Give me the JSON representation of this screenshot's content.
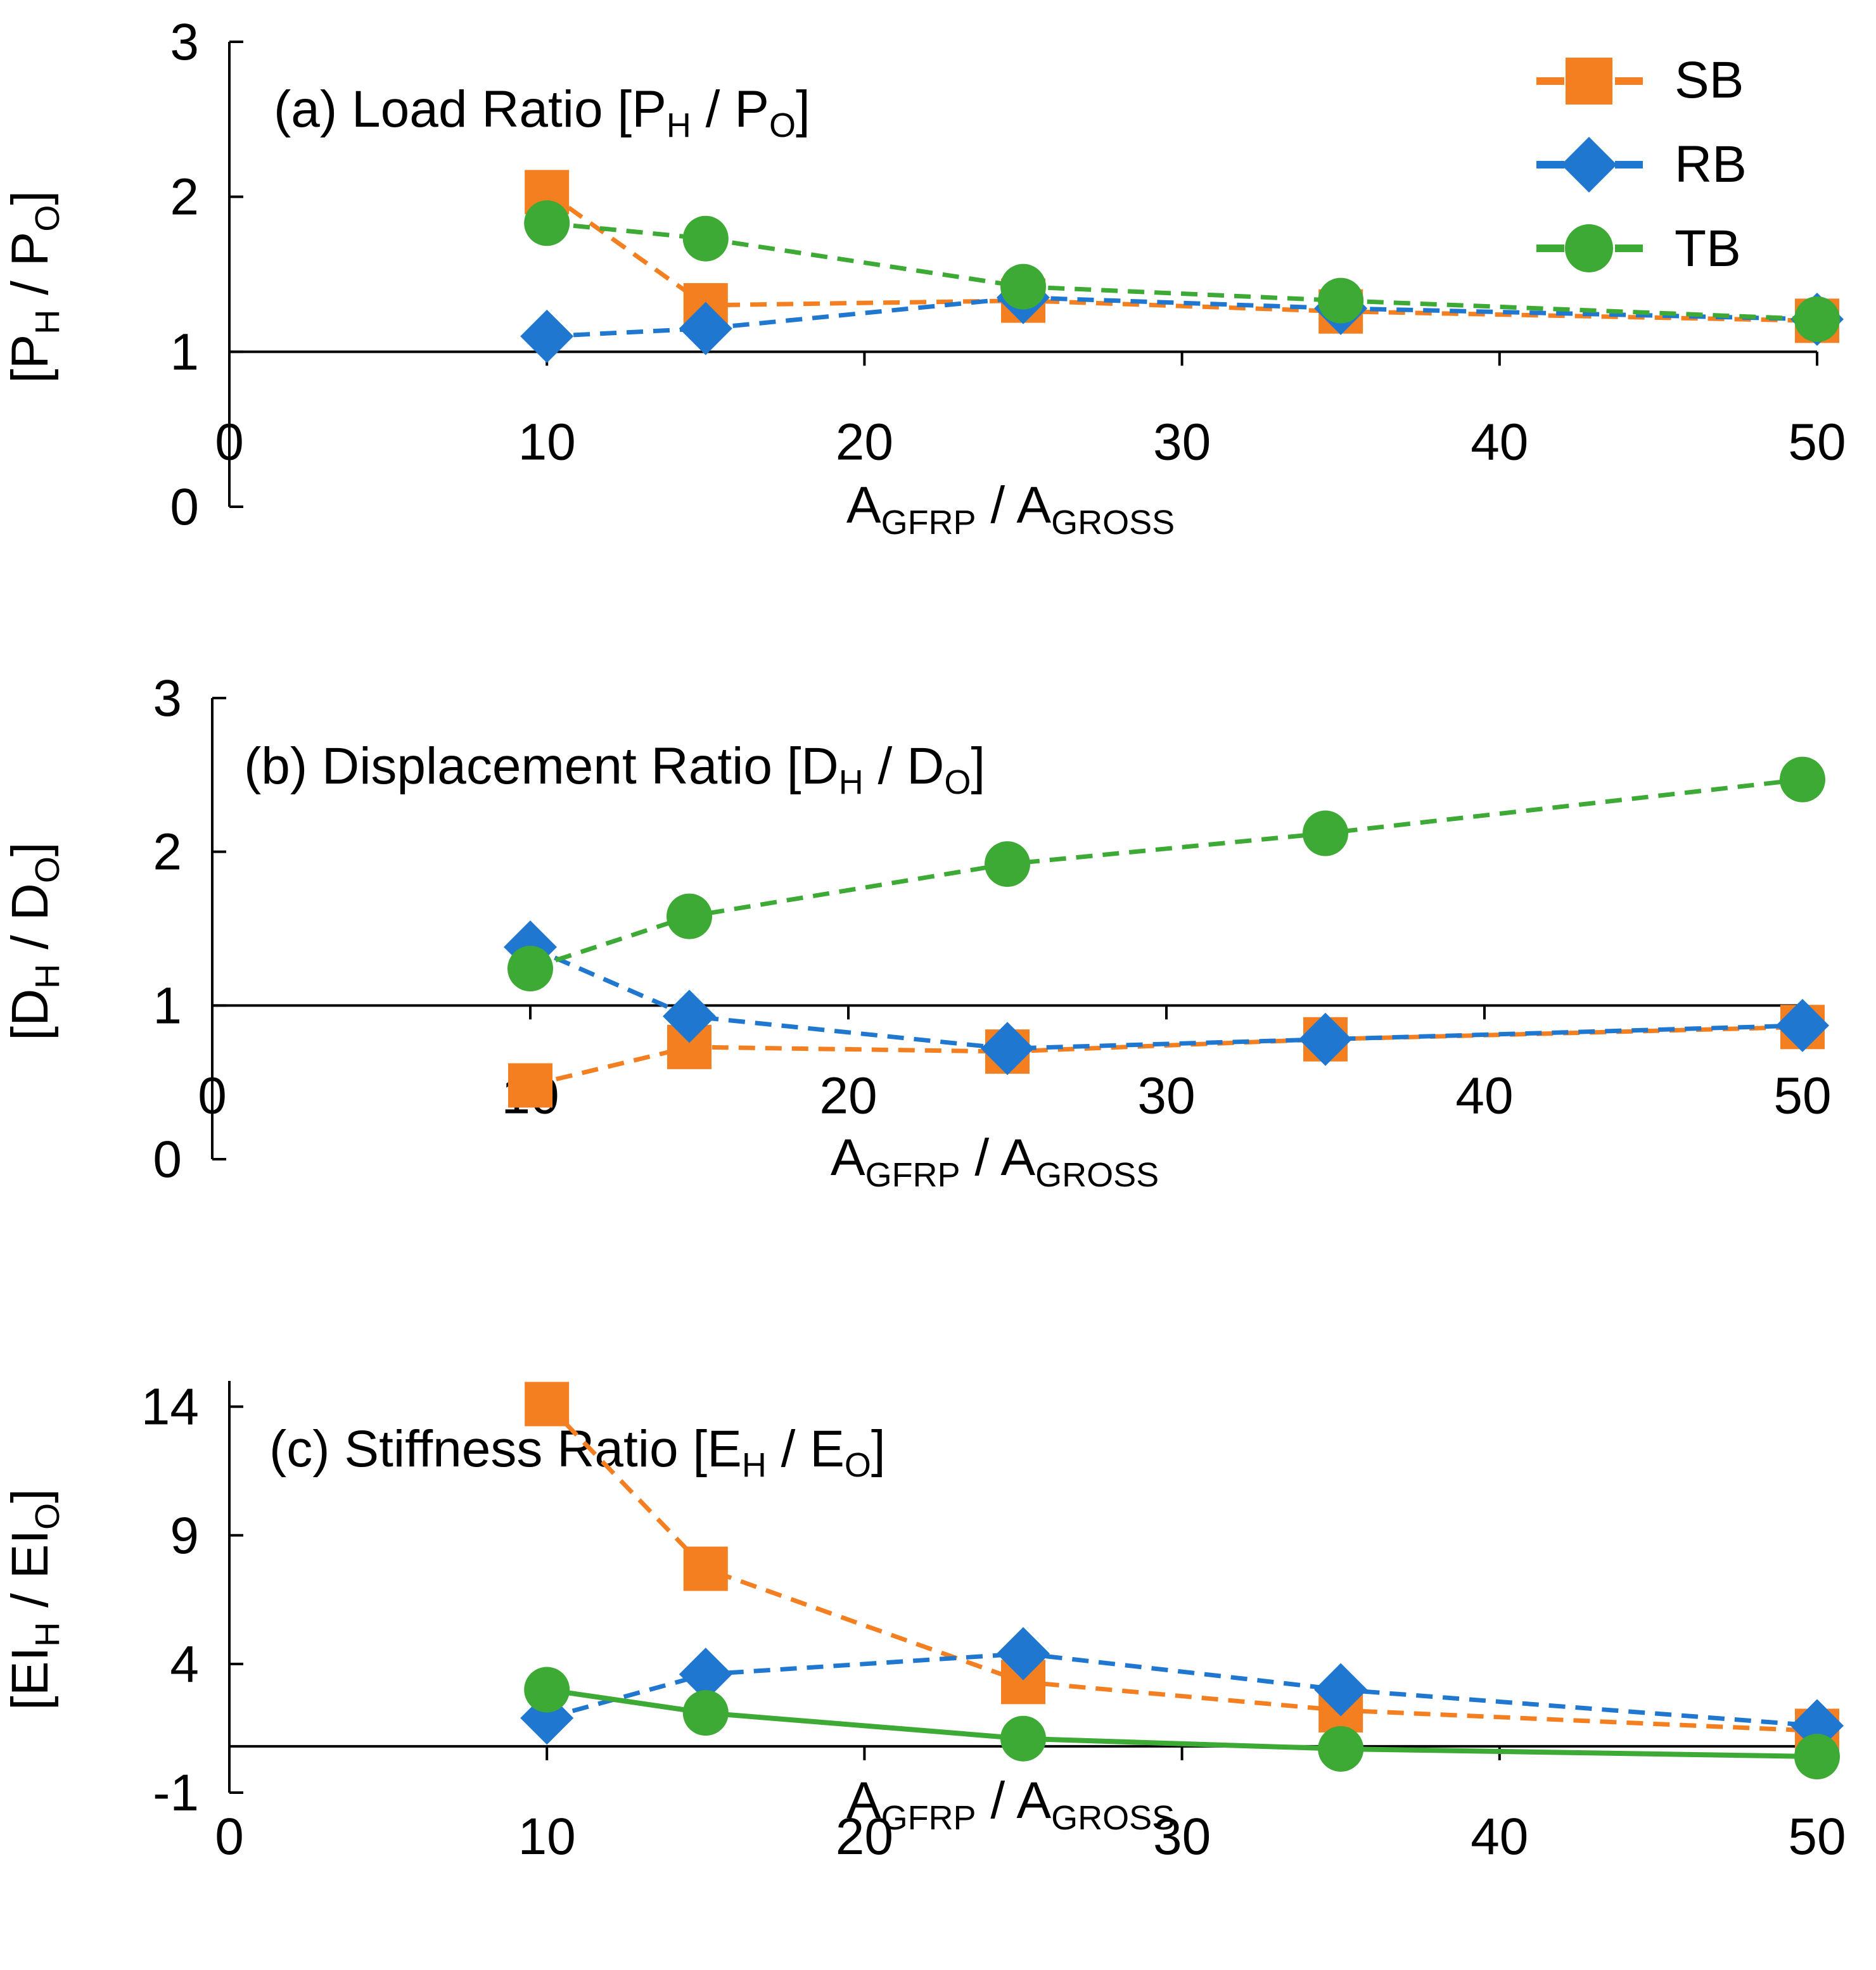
{
  "legend": {
    "entries": [
      {
        "name": "SB",
        "color": "#F47F20",
        "marker": "square"
      },
      {
        "name": "RB",
        "color": "#1F77D0",
        "marker": "diamond"
      },
      {
        "name": "TB",
        "color": "#3DAA35",
        "marker": "circle"
      }
    ]
  },
  "chart_data": [
    {
      "type": "line",
      "title_prefix": "(a) Load Ratio [P",
      "title_sub1": "H",
      "title_mid": " / P",
      "title_sub2": "O",
      "title_suffix": "]",
      "xlabel_main1": "A",
      "xlabel_sub1": "GFRP",
      "xlabel_mid": " / A",
      "xlabel_sub2": "GROSS",
      "ylabel_main1": "[P",
      "ylabel_sub1": "H",
      "ylabel_mid": " / P",
      "ylabel_sub2": "O",
      "ylabel_suffix": "]",
      "xlim": [
        0,
        50
      ],
      "ylim": [
        0,
        3
      ],
      "x_ticks": [
        "0",
        "10",
        "20",
        "30",
        "40",
        "50"
      ],
      "y_ticks": [
        "0",
        "1",
        "2",
        "3"
      ],
      "x_axis_at_y": 1,
      "x": [
        10,
        15,
        25,
        35,
        50
      ],
      "series": [
        {
          "name": "SB",
          "values": [
            2.03,
            1.3,
            1.33,
            1.26,
            1.2
          ]
        },
        {
          "name": "RB",
          "values": [
            1.1,
            1.15,
            1.35,
            1.28,
            1.21
          ]
        },
        {
          "name": "TB",
          "values": [
            1.83,
            1.73,
            1.42,
            1.33,
            1.21
          ]
        }
      ]
    },
    {
      "type": "line",
      "title_prefix": "(b) Displacement Ratio [D",
      "title_sub1": "H",
      "title_mid": " / D",
      "title_sub2": "O",
      "title_suffix": "]",
      "xlabel_main1": "A",
      "xlabel_sub1": "GFRP",
      "xlabel_mid": " / A",
      "xlabel_sub2": "GROSS",
      "ylabel_main1": "[D",
      "ylabel_sub1": "H",
      "ylabel_mid": " / D",
      "ylabel_sub2": "O",
      "ylabel_suffix": "]",
      "xlim": [
        0,
        50
      ],
      "ylim": [
        0,
        3
      ],
      "x_ticks": [
        "0",
        "10",
        "20",
        "30",
        "40",
        "50"
      ],
      "y_ticks": [
        "0",
        "1",
        "2",
        "3"
      ],
      "x_axis_at_y": 1,
      "x": [
        10,
        15,
        25,
        35,
        50
      ],
      "series": [
        {
          "name": "SB",
          "values": [
            0.48,
            0.73,
            0.7,
            0.78,
            0.86
          ]
        },
        {
          "name": "RB",
          "values": [
            1.38,
            0.93,
            0.72,
            0.78,
            0.87
          ]
        },
        {
          "name": "TB",
          "values": [
            1.24,
            1.58,
            1.92,
            2.12,
            2.47
          ]
        }
      ]
    },
    {
      "type": "line",
      "title_prefix": "(c) Stiffness Ratio [E",
      "title_sub1": "H",
      "title_mid": " / E",
      "title_sub2": "O",
      "title_suffix": "]",
      "xlabel_main1": "A",
      "xlabel_sub1": "GFRP",
      "xlabel_mid": " / A",
      "xlabel_sub2": "GROSS",
      "ylabel_main1": "[EI",
      "ylabel_sub1": "H",
      "ylabel_mid": " / EI",
      "ylabel_sub2": "O",
      "ylabel_suffix": "]",
      "xlim": [
        0,
        50
      ],
      "ylim": [
        -1,
        15
      ],
      "x_ticks": [
        "0",
        "10",
        "20",
        "30",
        "40",
        "50"
      ],
      "y_ticks": [
        "-1",
        "4",
        "9",
        "14"
      ],
      "y_tick_values": [
        -1,
        4,
        9,
        14
      ],
      "x_axis_at_y": 0.8,
      "x": [
        10,
        15,
        25,
        35,
        50
      ],
      "series": [
        {
          "name": "SB",
          "values": [
            14.1,
            7.7,
            3.3,
            2.2,
            1.4
          ]
        },
        {
          "name": "RB",
          "values": [
            1.9,
            3.6,
            4.4,
            3.0,
            1.6
          ]
        },
        {
          "name": "TB",
          "values": [
            3.0,
            2.1,
            1.1,
            0.7,
            0.4
          ],
          "solid": true
        }
      ]
    }
  ]
}
